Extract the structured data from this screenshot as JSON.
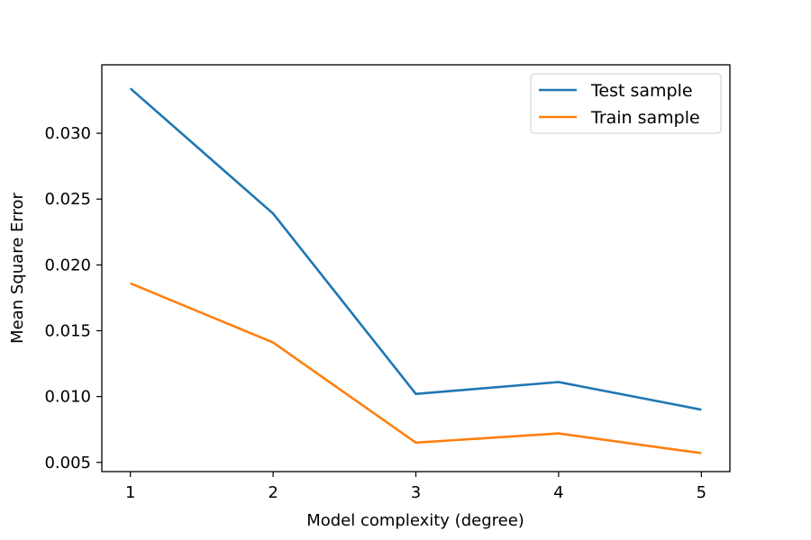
{
  "chart_data": {
    "type": "line",
    "title": "",
    "xlabel": "Model complexity (degree)",
    "ylabel": "Mean Square Error",
    "x": [
      1,
      2,
      3,
      4,
      5
    ],
    "x_ticks": [
      1,
      2,
      3,
      4,
      5
    ],
    "x_tick_labels": [
      "1",
      "2",
      "3",
      "4",
      "5"
    ],
    "xlim": [
      0.8,
      5.2
    ],
    "y_ticks": [
      0.005,
      0.01,
      0.015,
      0.02,
      0.025,
      0.03
    ],
    "y_tick_labels": [
      "0.005",
      "0.010",
      "0.015",
      "0.020",
      "0.025",
      "0.030"
    ],
    "ylim": [
      0.0043,
      0.0352
    ],
    "grid": false,
    "legend_position": "top-right",
    "series": [
      {
        "name": "Test sample",
        "color": "#1f77b4",
        "values": [
          0.0334,
          0.0239,
          0.0102,
          0.0111,
          0.009
        ]
      },
      {
        "name": "Train sample",
        "color": "#ff7f0e",
        "values": [
          0.0186,
          0.0141,
          0.0065,
          0.0072,
          0.0057
        ]
      }
    ]
  }
}
